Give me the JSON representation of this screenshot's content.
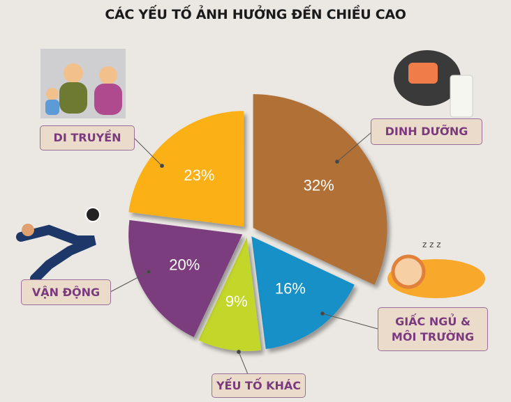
{
  "chart_data": {
    "type": "pie",
    "title": "CÁC YẾU TỐ ẢNH HƯỞNG ĐẾN CHIỀU CAO",
    "start": "top",
    "direction": "clockwise",
    "exploded": true,
    "slices": [
      {
        "name": "DINH DƯỠNG",
        "value": 32,
        "label": "32%",
        "color": "#b16f36"
      },
      {
        "name": "GIẤC NGỦ & MÔI TRƯỜNG",
        "value": 16,
        "label": "16%",
        "color": "#1790c6"
      },
      {
        "name": "YẾU TỐ KHÁC",
        "value": 9,
        "label": "9%",
        "color": "#c3d629"
      },
      {
        "name": "VẬN ĐỘNG",
        "value": 20,
        "label": "20%",
        "color": "#7c3c7e"
      },
      {
        "name": "DI TRUYỀN",
        "value": 23,
        "label": "23%",
        "color": "#fbb017"
      }
    ]
  },
  "labels": {
    "dinh_duong": "DINH DƯỠNG",
    "giac_ngu_1": "GIẤC NGỦ &",
    "giac_ngu_2": "MÔI TRƯỜNG",
    "yeu_to_khac": "YẾU TỐ KHÁC",
    "van_dong": "VẬN ĐỘNG",
    "di_truyen": "DI TRUYỀN"
  },
  "illustrations": [
    "fast-food-family",
    "salmon-salad-milk",
    "sleeping-child",
    "soccer-player"
  ]
}
